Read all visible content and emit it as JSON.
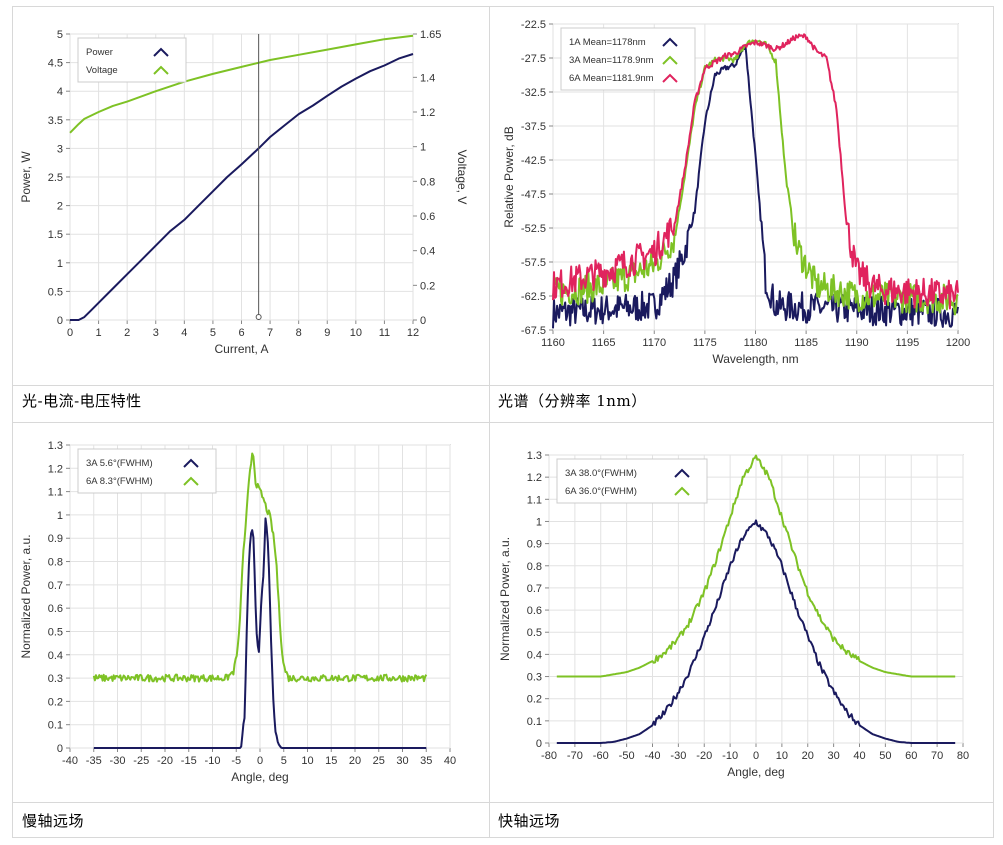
{
  "captions": {
    "top_left": "光-电流-电压特性",
    "top_right": "光谱（分辨率 1nm）",
    "bottom_left": "慢轴远场",
    "bottom_right": "快轴远场"
  },
  "colors": {
    "navy": "#1a1a5e",
    "green": "#7ec225",
    "magenta": "#e0245e",
    "axis": "#888888",
    "grid": "#e2e2e2"
  },
  "chart_data": [
    {
      "id": "liv",
      "type": "line",
      "xlabel": "Current, A",
      "ylabel": "Power, W",
      "y2label": "Voltage, V",
      "xlim": [
        0,
        12
      ],
      "ylim": [
        0,
        5
      ],
      "y2lim": [
        0,
        1.65
      ],
      "xticks": [
        "0",
        "1",
        "2",
        "3",
        "4",
        "5",
        "6",
        "7",
        "8",
        "9",
        "10",
        "11",
        "12"
      ],
      "yticks": [
        "0",
        "0.5",
        "1",
        "1.5",
        "2",
        "2.5",
        "3",
        "3.5",
        "4",
        "4.5",
        "5"
      ],
      "y2ticks": [
        "0",
        "0.2",
        "0.4",
        "0.6",
        "0.8",
        "1",
        "1.2",
        "1.4",
        "1.65"
      ],
      "cursor_x": 6.6,
      "legend": [
        "Power",
        "Voltage"
      ],
      "series": [
        {
          "name": "Power",
          "axis": "left",
          "color": "navy",
          "x": [
            0,
            0.3,
            0.5,
            0.7,
            1,
            1.5,
            2,
            2.5,
            3,
            3.5,
            4,
            4.5,
            5,
            5.5,
            6,
            6.6,
            7,
            7.5,
            8,
            8.5,
            9,
            9.5,
            10,
            10.5,
            11,
            11.5,
            12
          ],
          "y": [
            0,
            0,
            0.05,
            0.15,
            0.3,
            0.55,
            0.8,
            1.05,
            1.3,
            1.55,
            1.75,
            2.0,
            2.25,
            2.5,
            2.72,
            3.0,
            3.2,
            3.4,
            3.6,
            3.75,
            3.92,
            4.08,
            4.22,
            4.35,
            4.45,
            4.57,
            4.65
          ]
        },
        {
          "name": "Voltage",
          "axis": "right",
          "color": "green",
          "x": [
            0,
            0.3,
            0.5,
            1,
            1.5,
            2,
            3,
            4,
            5,
            6,
            7,
            8,
            9,
            10,
            11,
            12
          ],
          "y": [
            1.08,
            1.13,
            1.16,
            1.2,
            1.235,
            1.26,
            1.32,
            1.375,
            1.42,
            1.46,
            1.5,
            1.53,
            1.56,
            1.59,
            1.62,
            1.64
          ]
        }
      ]
    },
    {
      "id": "spectrum",
      "type": "line",
      "xlabel": "Wavelength, nm",
      "ylabel": "Relative Power, dB",
      "xlim": [
        1160,
        1200
      ],
      "ylim": [
        -67.5,
        -22.5
      ],
      "xticks": [
        "1160",
        "1165",
        "1170",
        "1175",
        "1180",
        "1185",
        "1190",
        "1195",
        "1200"
      ],
      "yticks": [
        "-22.5",
        "-27.5",
        "-32.5",
        "-37.5",
        "-42.5",
        "-47.5",
        "-52.5",
        "-57.5",
        "-62.5",
        "-67.5"
      ],
      "legend": [
        "1A Mean=1178nm",
        "3A Mean=1178.9nm",
        "6A Mean=1181.9nm"
      ],
      "series": [
        {
          "name": "1A Mean=1178nm",
          "color": "navy",
          "x": [
            1160,
            1165,
            1170,
            1172,
            1173,
            1174,
            1175,
            1176,
            1177,
            1178,
            1179,
            1180,
            1181,
            1182,
            1190,
            1200
          ],
          "y": [
            -65,
            -64.5,
            -64,
            -60,
            -56,
            -50,
            -37,
            -30,
            -29,
            -28.5,
            -25.5,
            -42,
            -60,
            -64,
            -64.5,
            -65
          ]
        },
        {
          "name": "3A Mean=1178.9nm",
          "color": "green",
          "x": [
            1160,
            1165,
            1170,
            1172,
            1173,
            1174,
            1175,
            1176,
            1177,
            1178,
            1179,
            1180,
            1181,
            1182,
            1183,
            1184,
            1186,
            1190,
            1200
          ],
          "y": [
            -62,
            -61,
            -58,
            -54,
            -45,
            -35,
            -29,
            -27.8,
            -27.5,
            -27.8,
            -25.5,
            -24.8,
            -25.5,
            -28,
            -45,
            -55,
            -61,
            -62.5,
            -63
          ]
        },
        {
          "name": "6A Mean=1181.9nm",
          "color": "magenta",
          "x": [
            1160,
            1165,
            1170,
            1172,
            1173,
            1174,
            1175,
            1177,
            1178,
            1179,
            1180,
            1181,
            1182,
            1183,
            1184,
            1185,
            1186,
            1187,
            1188,
            1189,
            1190,
            1192,
            1200
          ],
          "y": [
            -61,
            -59,
            -56,
            -52,
            -44,
            -34,
            -29,
            -27.2,
            -26.8,
            -25.8,
            -25.2,
            -25.6,
            -26.2,
            -25.4,
            -24.4,
            -24.3,
            -26.5,
            -27.5,
            -35,
            -52,
            -59,
            -61.5,
            -62.5
          ]
        }
      ]
    },
    {
      "id": "slow_axis",
      "type": "line",
      "xlabel": "Angle, deg",
      "ylabel": "Normalized Power, a.u.",
      "xlim": [
        -40,
        40
      ],
      "ylim": [
        0,
        1.3
      ],
      "xticks": [
        "-40",
        "-35",
        "-30",
        "-25",
        "-20",
        "-15",
        "-10",
        "-5",
        "0",
        "5",
        "10",
        "15",
        "20",
        "25",
        "30",
        "35",
        "40"
      ],
      "yticks": [
        "0",
        "0.1",
        "0.2",
        "0.3",
        "0.4",
        "0.5",
        "0.6",
        "0.7",
        "0.8",
        "0.9",
        "1",
        "1.1",
        "1.2",
        "1.3"
      ],
      "legend": [
        "3A 5.6°(FWHM)",
        "6A 8.3°(FWHM)"
      ],
      "series": [
        {
          "name": "3A 5.6°(FWHM)",
          "color": "navy",
          "x": [
            -35,
            -4,
            -3.2,
            -2.8,
            -2.3,
            -1.8,
            -1.3,
            -0.8,
            -0.3,
            0.2,
            0.7,
            1.2,
            1.7,
            2.2,
            2.7,
            3.2,
            3.8,
            4.5,
            35
          ],
          "y": [
            0,
            0,
            0.15,
            0.5,
            0.8,
            0.95,
            0.88,
            0.5,
            0.4,
            0.6,
            0.75,
            0.99,
            0.88,
            0.55,
            0.25,
            0.08,
            0.02,
            0,
            0
          ]
        },
        {
          "name": "6A 8.3°(FWHM)",
          "color": "green",
          "x": [
            -35,
            -7,
            -5.5,
            -4.5,
            -4,
            -3.5,
            -3,
            -2.5,
            -2,
            -1.5,
            -1,
            -0.5,
            0,
            0.5,
            1,
            1.5,
            2,
            2.5,
            3,
            3.5,
            4,
            4.5,
            5,
            6,
            35
          ],
          "y": [
            0.3,
            0.3,
            0.33,
            0.45,
            0.65,
            0.85,
            0.95,
            1.1,
            1.2,
            1.29,
            1.15,
            1.12,
            1.1,
            1.08,
            1.05,
            1.02,
            1.0,
            0.95,
            0.88,
            0.78,
            0.6,
            0.45,
            0.35,
            0.3,
            0.3
          ]
        }
      ]
    },
    {
      "id": "fast_axis",
      "type": "line",
      "xlabel": "Angle, deg",
      "ylabel": "Normalized Power, a.u.",
      "xlim": [
        -80,
        80
      ],
      "ylim": [
        0,
        1.3
      ],
      "xticks": [
        "-80",
        "-70",
        "-60",
        "-50",
        "-40",
        "-30",
        "-20",
        "-10",
        "0",
        "10",
        "20",
        "30",
        "40",
        "50",
        "60",
        "70",
        "80"
      ],
      "yticks": [
        "0",
        "0.1",
        "0.2",
        "0.3",
        "0.4",
        "0.5",
        "0.6",
        "0.7",
        "0.8",
        "0.9",
        "1",
        "1.1",
        "1.2",
        "1.3"
      ],
      "legend": [
        "3A 38.0°(FWHM)",
        "6A 36.0°(FWHM)"
      ],
      "series": [
        {
          "name": "3A 38.0°(FWHM)",
          "color": "navy",
          "x": [
            -77,
            -60,
            -55,
            -50,
            -45,
            -40,
            -35,
            -30,
            -25,
            -20,
            -15,
            -10,
            -5,
            0,
            5,
            10,
            15,
            20,
            25,
            30,
            35,
            40,
            45,
            50,
            55,
            60,
            77
          ],
          "y": [
            0,
            0,
            0.005,
            0.02,
            0.04,
            0.08,
            0.14,
            0.23,
            0.34,
            0.48,
            0.63,
            0.8,
            0.93,
            1.0,
            0.93,
            0.8,
            0.63,
            0.48,
            0.34,
            0.23,
            0.14,
            0.08,
            0.04,
            0.02,
            0.005,
            0,
            0
          ]
        },
        {
          "name": "6A 36.0°(FWHM)",
          "color": "green",
          "x": [
            -77,
            -60,
            -55,
            -50,
            -45,
            -40,
            -35,
            -30,
            -25,
            -20,
            -15,
            -10,
            -5,
            0,
            5,
            10,
            15,
            20,
            25,
            30,
            35,
            40,
            45,
            50,
            55,
            60,
            65,
            77
          ],
          "y": [
            0.3,
            0.3,
            0.31,
            0.32,
            0.34,
            0.37,
            0.41,
            0.47,
            0.56,
            0.68,
            0.84,
            1.02,
            1.2,
            1.29,
            1.2,
            1.02,
            0.84,
            0.68,
            0.56,
            0.47,
            0.41,
            0.37,
            0.34,
            0.32,
            0.31,
            0.3,
            0.3,
            0.3
          ]
        }
      ]
    }
  ]
}
